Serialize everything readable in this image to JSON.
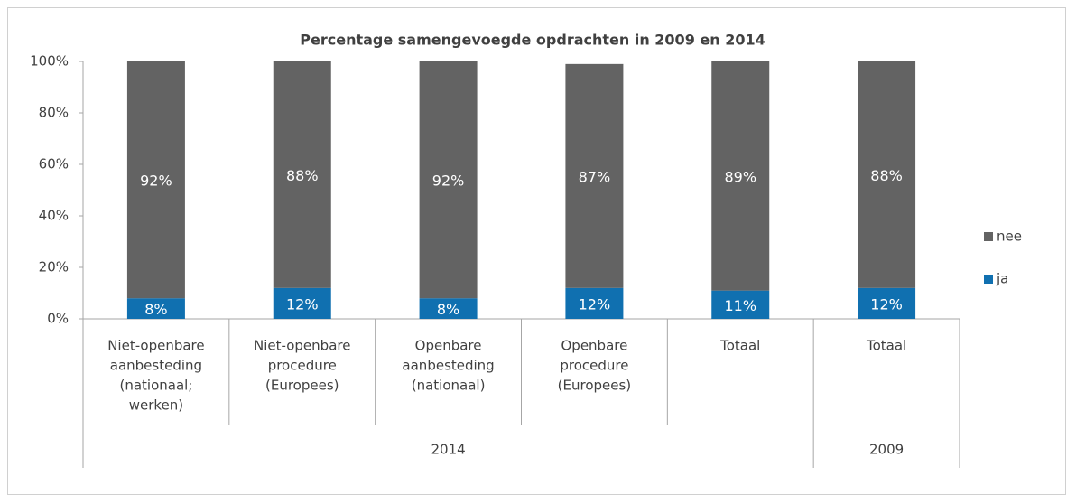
{
  "chart_data": {
    "type": "stacked_bar",
    "title": "Percentage samengevoegde opdrachten in 2009 en 2014",
    "categories": [
      [
        "Niet-openbare",
        "aanbesteding",
        "(nationaal;",
        "werken)"
      ],
      [
        "Niet-openbare",
        "procedure",
        "(Europees)"
      ],
      [
        "Openbare",
        "aanbesteding",
        "(nationaal)"
      ],
      [
        "Openbare",
        "procedure",
        "(Europees)"
      ],
      [
        "Totaal"
      ],
      [
        "Totaal"
      ]
    ],
    "category_groups": [
      "2014",
      "2014",
      "2014",
      "2014",
      "2014",
      "2009"
    ],
    "series": [
      {
        "name": "ja",
        "color": "#1070b0",
        "values": [
          8,
          12,
          8,
          12,
          11,
          12
        ],
        "value_labels": [
          "8%",
          "12%",
          "8%",
          "12%",
          "11%",
          "12%"
        ]
      },
      {
        "name": "nee",
        "color": "#636363",
        "values": [
          92,
          88,
          92,
          87,
          89,
          88
        ],
        "value_labels": [
          "92%",
          "88%",
          "92%",
          "87%",
          "89%",
          "88%"
        ]
      }
    ],
    "ylim": [
      0,
      100
    ],
    "yticks": [
      {
        "value": 0,
        "label": "0%"
      },
      {
        "value": 20,
        "label": "20%"
      },
      {
        "value": 40,
        "label": "40%"
      },
      {
        "value": 60,
        "label": "60%"
      },
      {
        "value": 80,
        "label": "80%"
      },
      {
        "value": 100,
        "label": "100%"
      }
    ],
    "legend": "right"
  }
}
